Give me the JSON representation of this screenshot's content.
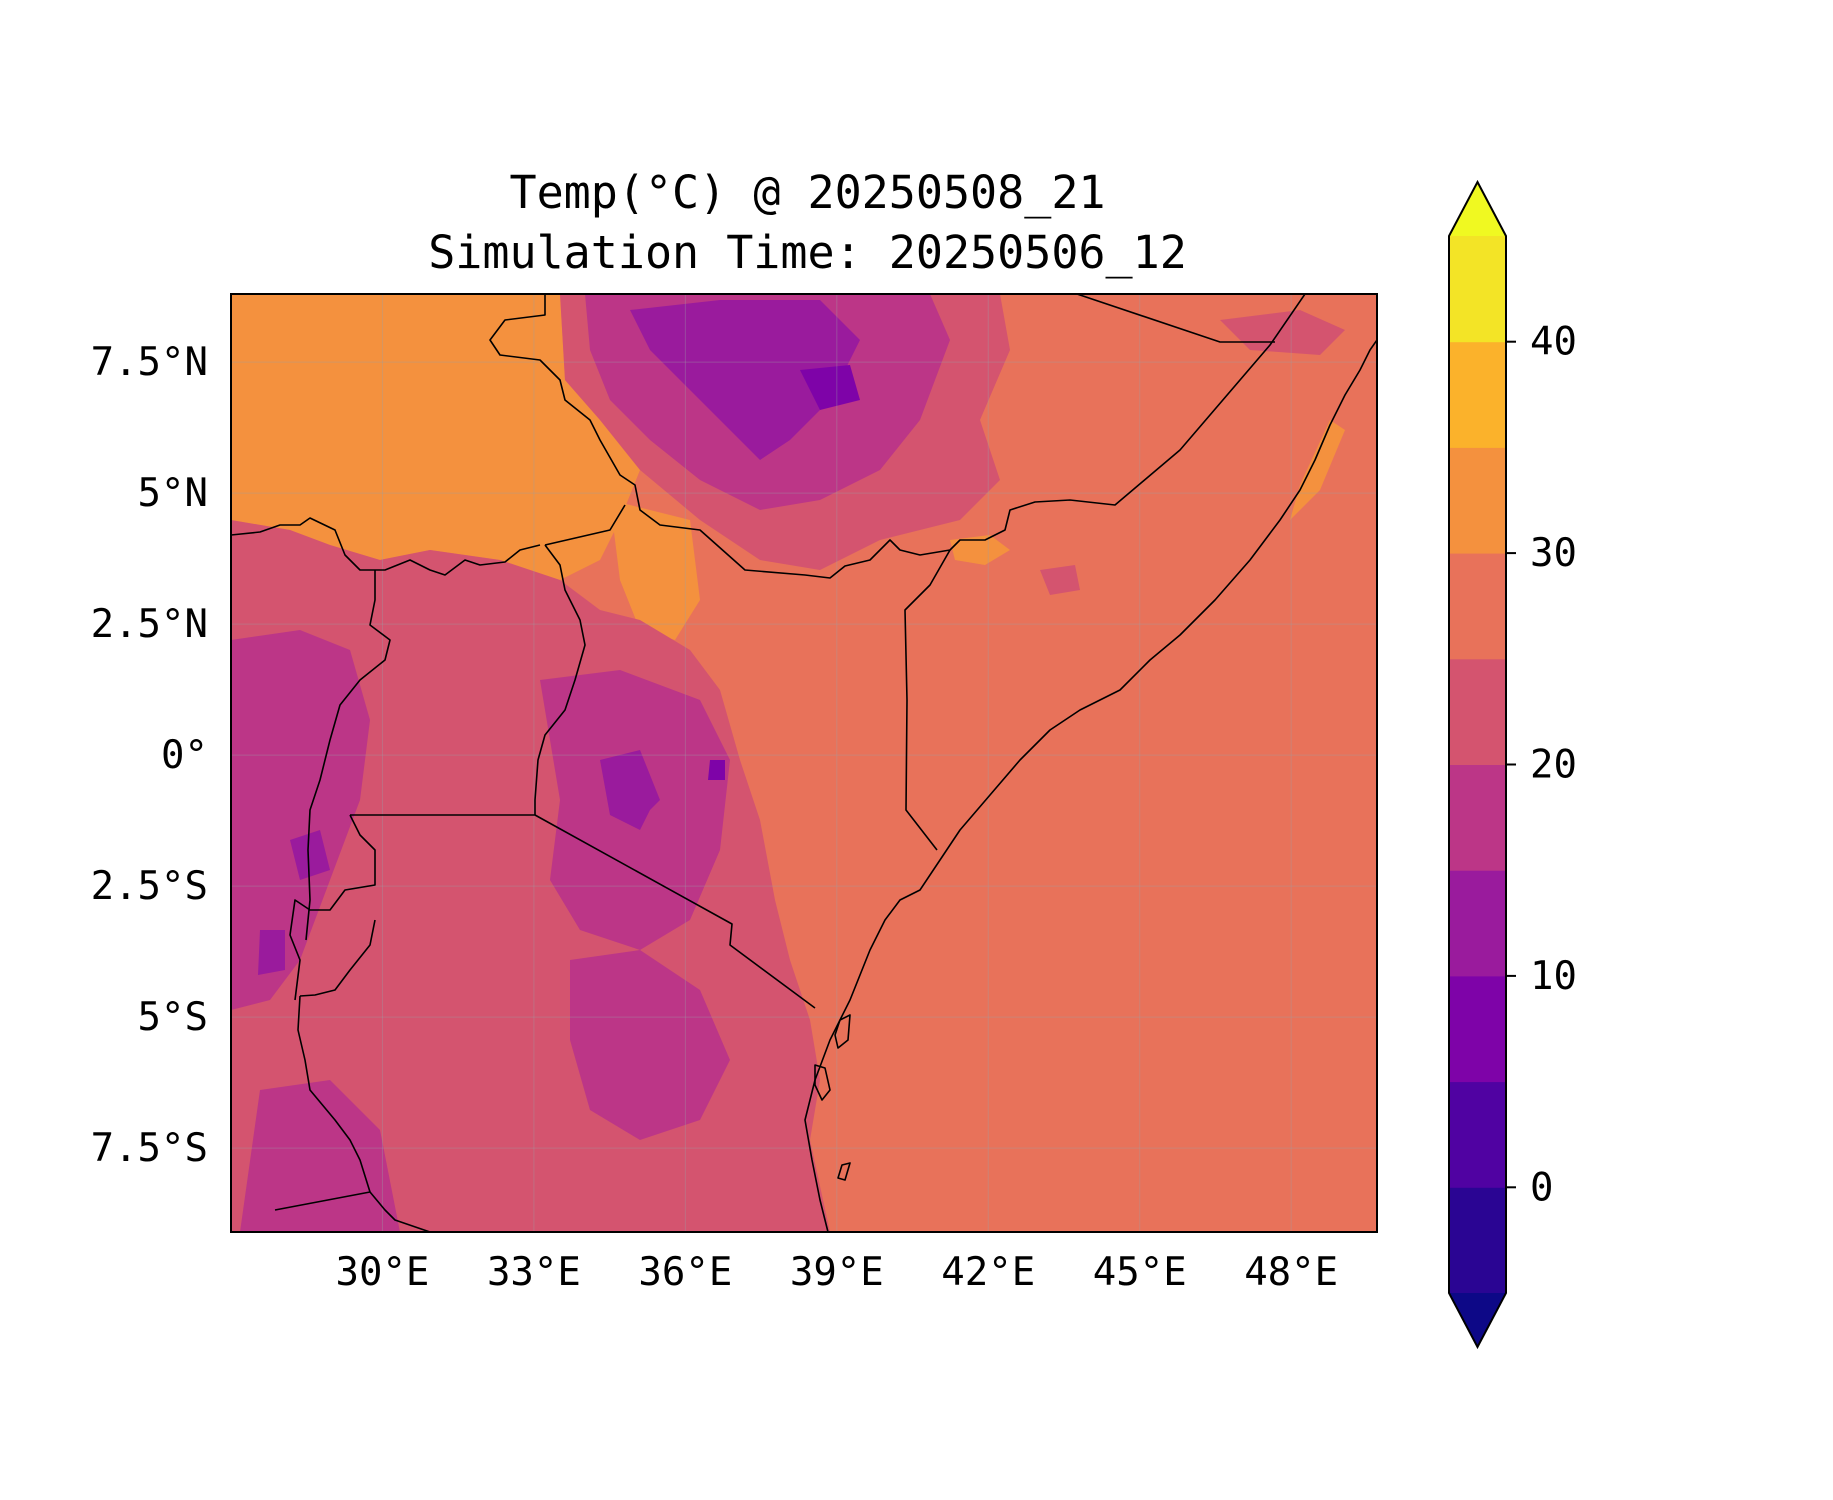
{
  "title": {
    "line1": "Temp(°C) @ 20250508_21",
    "line2": "Simulation Time: 20250506_12"
  },
  "map": {
    "lon_range": [
      27.0,
      49.7
    ],
    "lat_range": [
      -9.1,
      8.8
    ],
    "x_ticks": [
      {
        "value": 30,
        "label": "30°E"
      },
      {
        "value": 33,
        "label": "33°E"
      },
      {
        "value": 36,
        "label": "36°E"
      },
      {
        "value": 39,
        "label": "39°E"
      },
      {
        "value": 42,
        "label": "42°E"
      },
      {
        "value": 45,
        "label": "45°E"
      },
      {
        "value": 48,
        "label": "48°E"
      }
    ],
    "y_ticks": [
      {
        "value": 7.5,
        "label": "7.5°N"
      },
      {
        "value": 5,
        "label": "5°N"
      },
      {
        "value": 2.5,
        "label": "2.5°N"
      },
      {
        "value": 0,
        "label": "0°"
      },
      {
        "value": -2.5,
        "label": "2.5°S"
      },
      {
        "value": -5,
        "label": "5°S"
      },
      {
        "value": -7.5,
        "label": "7.5°S"
      }
    ],
    "gridlines": true,
    "field_colors": {
      "warm_30_35": "#f4913e",
      "mild_25_30": "#e8725a",
      "cool_20_25": "#d4546f",
      "colder_15_20": "#bc3687",
      "cold_10_15": "#9a1b9d",
      "very_cold_5_10": "#7e03a8"
    }
  },
  "colorbar": {
    "levels": [
      -5,
      0,
      5,
      10,
      15,
      20,
      25,
      30,
      35,
      40,
      45
    ],
    "colors": [
      "#2a0593",
      "#5002a2",
      "#7e03a8",
      "#9a1b9d",
      "#bc3687",
      "#d4546f",
      "#e8725a",
      "#f4913e",
      "#fbb22b",
      "#f3e426"
    ],
    "under_color": "#0d0887",
    "over_color": "#f0f921",
    "tick_labels": [
      {
        "value": 0,
        "label": "0"
      },
      {
        "value": 10,
        "label": "10"
      },
      {
        "value": 20,
        "label": "20"
      },
      {
        "value": 30,
        "label": "30"
      },
      {
        "value": 40,
        "label": "40"
      }
    ]
  }
}
